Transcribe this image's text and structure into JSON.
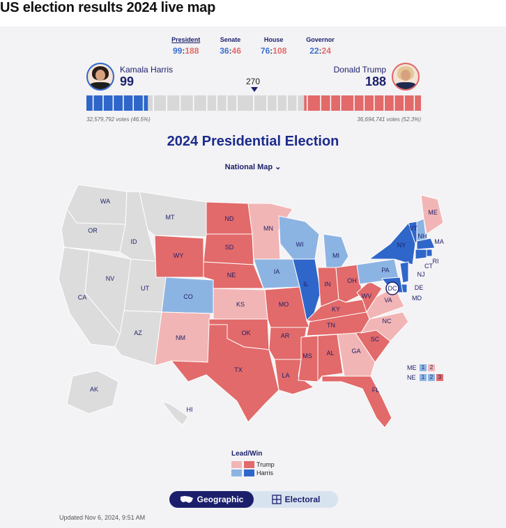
{
  "page_title": "US election results 2024 live map",
  "races": [
    {
      "label": "President",
      "dem": "99",
      "rep": "188",
      "active": true
    },
    {
      "label": "Senate",
      "dem": "36",
      "rep": "46",
      "active": false
    },
    {
      "label": "House",
      "dem": "76",
      "rep": "108",
      "active": false
    },
    {
      "label": "Governor",
      "dem": "22",
      "rep": "24",
      "active": false
    }
  ],
  "harris": {
    "name": "Kamala Harris",
    "ev": "99",
    "votes": "32,579,792 votes (46.5%)"
  },
  "trump": {
    "name": "Donald Trump",
    "ev": "188",
    "votes": "36,694,741 votes (52.3%)"
  },
  "threshold": "270",
  "map_title": "2024 Presidential Election",
  "map_selector": "National Map",
  "colors": {
    "dem_win": "#2f66c9",
    "dem_lead": "#8cb4e3",
    "rep_win": "#e26a6a",
    "rep_lead": "#f2b5b5",
    "none": "#dcdcdc"
  },
  "states": [
    {
      "abbr": "WA",
      "status": "none"
    },
    {
      "abbr": "OR",
      "status": "none"
    },
    {
      "abbr": "CA",
      "status": "none"
    },
    {
      "abbr": "NV",
      "status": "none"
    },
    {
      "abbr": "ID",
      "status": "none"
    },
    {
      "abbr": "MT",
      "status": "none"
    },
    {
      "abbr": "UT",
      "status": "none"
    },
    {
      "abbr": "AZ",
      "status": "none"
    },
    {
      "abbr": "WY",
      "status": "rep_win"
    },
    {
      "abbr": "CO",
      "status": "dem_lead"
    },
    {
      "abbr": "NM",
      "status": "rep_lead"
    },
    {
      "abbr": "ND",
      "status": "rep_win"
    },
    {
      "abbr": "SD",
      "status": "rep_win"
    },
    {
      "abbr": "NE",
      "status": "rep_win"
    },
    {
      "abbr": "KS",
      "status": "rep_lead"
    },
    {
      "abbr": "OK",
      "status": "rep_win"
    },
    {
      "abbr": "TX",
      "status": "rep_win"
    },
    {
      "abbr": "MN",
      "status": "rep_lead"
    },
    {
      "abbr": "IA",
      "status": "dem_lead"
    },
    {
      "abbr": "MO",
      "status": "rep_win"
    },
    {
      "abbr": "AR",
      "status": "rep_win"
    },
    {
      "abbr": "LA",
      "status": "rep_win"
    },
    {
      "abbr": "WI",
      "status": "dem_lead"
    },
    {
      "abbr": "IL",
      "status": "dem_win"
    },
    {
      "abbr": "MI",
      "status": "dem_lead"
    },
    {
      "abbr": "IN",
      "status": "rep_win"
    },
    {
      "abbr": "OH",
      "status": "rep_win"
    },
    {
      "abbr": "KY",
      "status": "rep_win"
    },
    {
      "abbr": "TN",
      "status": "rep_win"
    },
    {
      "abbr": "MS",
      "status": "rep_win"
    },
    {
      "abbr": "AL",
      "status": "rep_win"
    },
    {
      "abbr": "GA",
      "status": "rep_lead"
    },
    {
      "abbr": "FL",
      "status": "rep_win"
    },
    {
      "abbr": "SC",
      "status": "rep_win"
    },
    {
      "abbr": "NC",
      "status": "rep_lead"
    },
    {
      "abbr": "VA",
      "status": "rep_lead"
    },
    {
      "abbr": "WV",
      "status": "rep_win"
    },
    {
      "abbr": "PA",
      "status": "dem_lead"
    },
    {
      "abbr": "NY",
      "status": "dem_win"
    },
    {
      "abbr": "VT",
      "status": "dem_win"
    },
    {
      "abbr": "NH",
      "status": "dem_lead"
    },
    {
      "abbr": "ME",
      "status": "rep_lead"
    },
    {
      "abbr": "MA",
      "status": "dem_win"
    },
    {
      "abbr": "RI",
      "status": "dem_win"
    },
    {
      "abbr": "CT",
      "status": "dem_win"
    },
    {
      "abbr": "NJ",
      "status": "dem_win"
    },
    {
      "abbr": "DE",
      "status": "dem_win"
    },
    {
      "abbr": "MD",
      "status": "dem_win"
    },
    {
      "abbr": "DC",
      "status": "dem_win"
    },
    {
      "abbr": "AK",
      "status": "none"
    },
    {
      "abbr": "HI",
      "status": "none"
    }
  ],
  "split_votes": {
    "me": {
      "label": "ME",
      "d1": "1",
      "d2": "2"
    },
    "ne": {
      "label": "NE",
      "d1": "1",
      "d2": "2",
      "d3": "3"
    }
  },
  "legend": {
    "title": "Lead/Win",
    "trump": "Trump",
    "harris": "Harris"
  },
  "toggle": {
    "geographic": "Geographic",
    "electoral": "Electoral"
  },
  "updated": "Updated Nov 6, 2024, 9:51 AM"
}
